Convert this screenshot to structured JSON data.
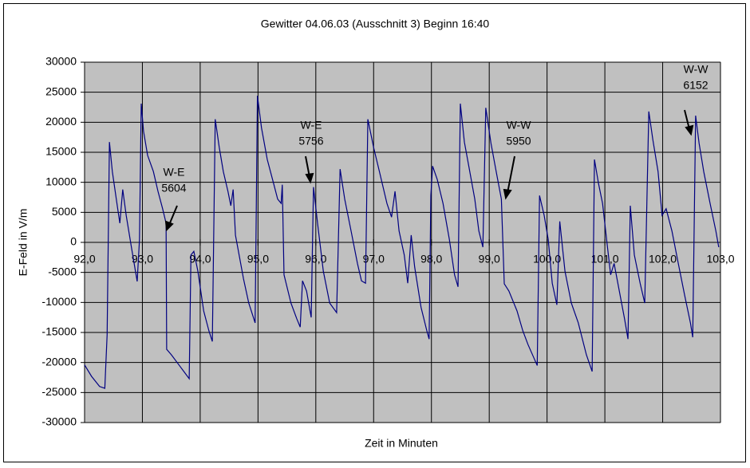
{
  "chart_data": {
    "type": "line",
    "title": "Gewitter 04.06.03 (Ausschnitt 3) Beginn 16:40",
    "x_label": "Zeit in Minuten",
    "y_label": "E-Feld in V/m",
    "color": "#000080",
    "background": "#c0c0c0",
    "grid": true,
    "xlim": [
      92,
      103
    ],
    "ylim": [
      -30000,
      30000
    ],
    "xticks": [
      {
        "value": 92,
        "label": "92,0"
      },
      {
        "value": 93,
        "label": "93,0"
      },
      {
        "value": 94,
        "label": "94,0"
      },
      {
        "value": 95,
        "label": "95,0"
      },
      {
        "value": 96,
        "label": "96,0"
      },
      {
        "value": 97,
        "label": "97,0"
      },
      {
        "value": 98,
        "label": "98,0"
      },
      {
        "value": 99,
        "label": "99,0"
      },
      {
        "value": 100,
        "label": "100,0"
      },
      {
        "value": 101,
        "label": "101,0"
      },
      {
        "value": 102,
        "label": "102,0"
      },
      {
        "value": 103,
        "label": "103,0"
      }
    ],
    "yticks": [
      -30000,
      -25000,
      -20000,
      -15000,
      -10000,
      -5000,
      0,
      5000,
      10000,
      15000,
      20000,
      25000,
      30000
    ],
    "x": [
      92.0,
      92.12,
      92.26,
      92.35,
      92.39,
      92.43,
      92.48,
      92.57,
      92.61,
      92.66,
      92.72,
      92.81,
      92.88,
      92.91,
      92.95,
      92.98,
      93.02,
      93.09,
      93.19,
      93.27,
      93.35,
      93.41,
      93.42,
      93.5,
      93.64,
      93.71,
      93.81,
      93.84,
      93.89,
      93.96,
      94.06,
      94.15,
      94.21,
      94.26,
      94.33,
      94.4,
      94.48,
      94.53,
      94.57,
      94.61,
      94.75,
      94.84,
      94.95,
      94.99,
      95.06,
      95.16,
      95.27,
      95.34,
      95.4,
      95.42,
      95.45,
      95.57,
      95.67,
      95.73,
      95.77,
      95.84,
      95.92,
      95.96,
      96.03,
      96.13,
      96.24,
      96.36,
      96.42,
      96.5,
      96.61,
      96.72,
      96.79,
      96.86,
      96.9,
      97.0,
      97.1,
      97.23,
      97.31,
      97.37,
      97.44,
      97.53,
      97.59,
      97.65,
      97.71,
      97.82,
      97.92,
      97.96,
      97.99,
      98.02,
      98.1,
      98.2,
      98.31,
      98.4,
      98.46,
      98.5,
      98.57,
      98.65,
      98.75,
      98.82,
      98.89,
      98.94,
      99.03,
      99.12,
      99.21,
      99.26,
      99.34,
      99.48,
      99.58,
      99.67,
      99.83,
      99.87,
      99.95,
      100.02,
      100.09,
      100.17,
      100.22,
      100.31,
      100.42,
      100.54,
      100.68,
      100.78,
      100.82,
      100.89,
      100.96,
      101.03,
      101.1,
      101.16,
      101.25,
      101.34,
      101.4,
      101.44,
      101.51,
      101.61,
      101.69,
      101.76,
      101.83,
      101.92,
      101.99,
      102.06,
      102.16,
      102.27,
      102.38,
      102.48,
      102.52,
      102.57,
      102.63,
      102.71,
      102.82,
      102.92,
      102.97
    ],
    "values": [
      -20400,
      -22300,
      -24000,
      -24300,
      -15400,
      16700,
      11800,
      5800,
      3200,
      8800,
      4500,
      -800,
      -4800,
      -6500,
      500,
      23100,
      18500,
      14500,
      11800,
      8500,
      5600,
      3200,
      -17800,
      -18700,
      -20500,
      -21400,
      -22700,
      -2100,
      -1500,
      -4800,
      -11400,
      -14700,
      -16500,
      20500,
      15800,
      11800,
      8500,
      6100,
      8800,
      1200,
      -6100,
      -10100,
      -13400,
      24400,
      19100,
      13800,
      9800,
      7200,
      6500,
      9600,
      -5400,
      -10100,
      -12700,
      -14100,
      -6400,
      -8100,
      -12500,
      9200,
      3200,
      -4800,
      -10100,
      -11700,
      12200,
      7200,
      1900,
      -3500,
      -6400,
      -6800,
      20500,
      15800,
      11800,
      6500,
      4200,
      8500,
      1900,
      -2100,
      -6800,
      1200,
      -4100,
      -10800,
      -14700,
      -16100,
      7800,
      12700,
      10500,
      6500,
      500,
      -5400,
      -7400,
      23100,
      16700,
      12500,
      7200,
      1900,
      -800,
      22400,
      16500,
      11800,
      7200,
      -6900,
      -8100,
      -11400,
      -14700,
      -17000,
      -20500,
      7800,
      4500,
      500,
      -6800,
      -10400,
      3500,
      -4800,
      -10100,
      -13400,
      -18700,
      -21500,
      13800,
      9800,
      6500,
      500,
      -5400,
      -3500,
      -8100,
      -12700,
      -16100,
      6100,
      -2100,
      -6800,
      -10100,
      21800,
      17100,
      11800,
      4500,
      5600,
      1900,
      -3500,
      -8800,
      -13400,
      -15800,
      21100,
      16500,
      11800,
      6500,
      1900,
      -800
    ],
    "annotations": [
      {
        "lines": [
          "W-E",
          "5604"
        ]
      },
      {
        "lines": [
          "W-E",
          "5756"
        ]
      },
      {
        "lines": [
          "W-W",
          "5950"
        ]
      },
      {
        "lines": [
          "W-W",
          "6152"
        ]
      }
    ]
  }
}
